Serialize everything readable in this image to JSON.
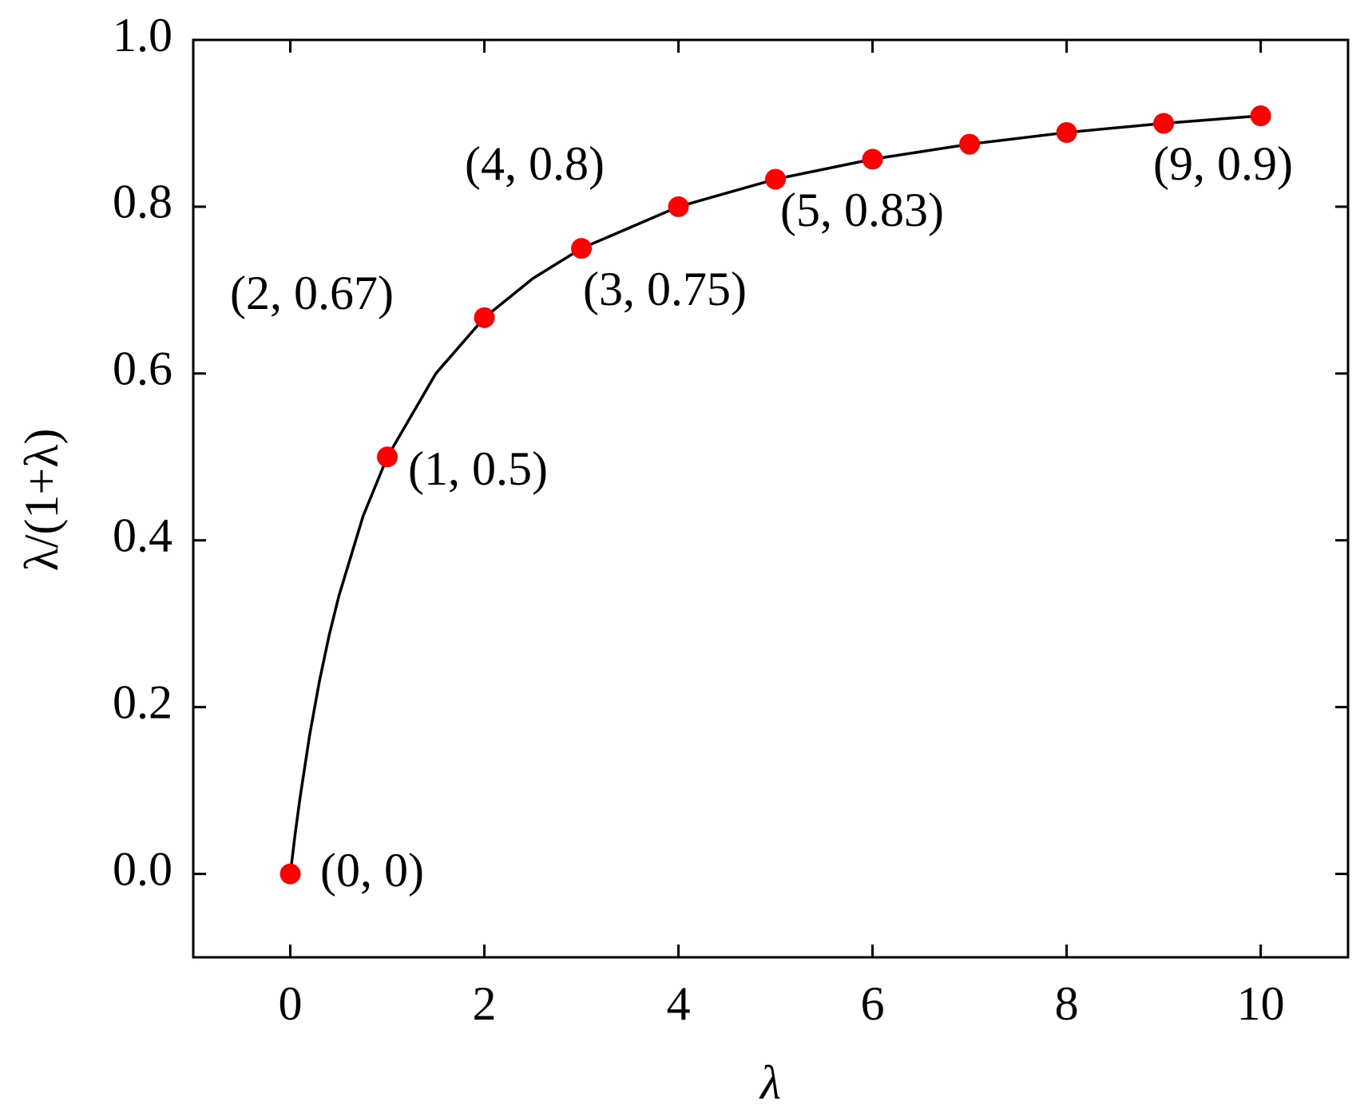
{
  "chart_data": {
    "type": "scatter",
    "xlabel": "λ",
    "ylabel": "λ/(1+λ)",
    "xlim": [
      -1,
      10.9
    ],
    "ylim": [
      -0.1,
      1.0
    ],
    "xticks": [
      0,
      2,
      4,
      6,
      8,
      10
    ],
    "yticks": [
      {
        "value": 0,
        "label": "0.0"
      },
      0.2,
      0.4,
      0.6,
      0.8,
      {
        "value": 1,
        "label": "1.0"
      }
    ],
    "curve": {
      "color": "#000000",
      "x": [
        0,
        0.05,
        0.1,
        0.2,
        0.3,
        0.4,
        0.5,
        0.75,
        1,
        1.5,
        2,
        2.5,
        3,
        4,
        5,
        6,
        7,
        8,
        9,
        10
      ],
      "values": [
        0,
        0.048,
        0.091,
        0.167,
        0.231,
        0.286,
        0.333,
        0.429,
        0.5,
        0.6,
        0.667,
        0.714,
        0.75,
        0.8,
        0.833,
        0.857,
        0.875,
        0.889,
        0.9,
        0.909
      ]
    },
    "points": {
      "color": "#ff0000",
      "x": [
        0,
        1,
        2,
        3,
        4,
        5,
        6,
        7,
        8,
        9,
        10
      ],
      "values": [
        0,
        0.5,
        0.667,
        0.75,
        0.8,
        0.833,
        0.857,
        0.875,
        0.889,
        0.9,
        0.909
      ]
    },
    "annotations": [
      "(0, 0)",
      "(1, 0.5)",
      "(2, 0.67)",
      "(3, 0.75)",
      "(4, 0.8)",
      "(5, 0.83)",
      "(9, 0.9)"
    ]
  }
}
